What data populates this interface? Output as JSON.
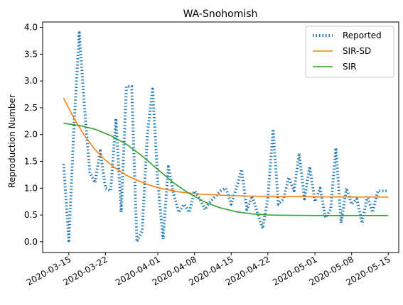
{
  "chart_data": {
    "type": "line",
    "title": "WA-Snohomish",
    "xlabel": "",
    "ylabel": "Reproduction Number",
    "xlim": [
      "2020-03-10",
      "2020-05-17"
    ],
    "ylim": [
      -0.2,
      4.1
    ],
    "x_ticks": [
      "2020-03-15",
      "2020-03-22",
      "2020-04-01",
      "2020-04-08",
      "2020-04-15",
      "2020-04-22",
      "2020-05-01",
      "2020-05-08",
      "2020-05-15"
    ],
    "y_ticks": [
      "0.0",
      "0.5",
      "1.0",
      "1.5",
      "2.0",
      "2.5",
      "3.0",
      "3.5",
      "4.0"
    ],
    "legend_position": "upper right",
    "grid": false,
    "series": [
      {
        "name": "Reported",
        "color": "#1f77b4",
        "style": "dotted",
        "x": [
          "2020-03-14",
          "2020-03-15",
          "2020-03-16",
          "2020-03-17",
          "2020-03-18",
          "2020-03-19",
          "2020-03-20",
          "2020-03-21",
          "2020-03-22",
          "2020-03-23",
          "2020-03-24",
          "2020-03-25",
          "2020-03-26",
          "2020-03-27",
          "2020-03-28",
          "2020-03-29",
          "2020-03-30",
          "2020-03-31",
          "2020-04-01",
          "2020-04-02",
          "2020-04-03",
          "2020-04-04",
          "2020-04-05",
          "2020-04-06",
          "2020-04-07",
          "2020-04-08",
          "2020-04-09",
          "2020-04-10",
          "2020-04-11",
          "2020-04-12",
          "2020-04-13",
          "2020-04-14",
          "2020-04-15",
          "2020-04-16",
          "2020-04-17",
          "2020-04-18",
          "2020-04-19",
          "2020-04-20",
          "2020-04-21",
          "2020-04-22",
          "2020-04-23",
          "2020-04-24",
          "2020-04-25",
          "2020-04-26",
          "2020-04-27",
          "2020-04-28",
          "2020-04-29",
          "2020-04-30",
          "2020-05-01",
          "2020-05-02",
          "2020-05-03",
          "2020-05-04",
          "2020-05-05",
          "2020-05-06",
          "2020-05-07",
          "2020-05-08",
          "2020-05-09",
          "2020-05-10",
          "2020-05-11",
          "2020-05-12",
          "2020-05-13",
          "2020-05-14",
          "2020-05-15"
        ],
        "values": [
          1.45,
          0.02,
          2.2,
          3.9,
          2.5,
          1.3,
          1.1,
          1.7,
          1.0,
          0.95,
          2.3,
          0.55,
          2.9,
          2.9,
          0.0,
          0.2,
          2.0,
          2.85,
          1.1,
          0.05,
          1.4,
          0.9,
          0.55,
          0.7,
          0.55,
          0.95,
          0.8,
          0.6,
          0.75,
          0.85,
          0.95,
          1.0,
          0.7,
          1.0,
          1.35,
          0.6,
          0.85,
          0.55,
          0.25,
          0.8,
          2.1,
          0.7,
          0.8,
          1.2,
          0.95,
          1.65,
          0.8,
          1.4,
          0.75,
          1.0,
          0.45,
          0.6,
          1.75,
          0.35,
          1.0,
          0.7,
          0.8,
          0.35,
          0.85,
          0.55,
          0.95,
          0.95,
          0.95
        ]
      },
      {
        "name": "SIR-SD",
        "color": "#ff7f0e",
        "style": "solid",
        "x": [
          "2020-03-14",
          "2020-03-16",
          "2020-03-18",
          "2020-03-20",
          "2020-03-22",
          "2020-03-24",
          "2020-03-26",
          "2020-03-28",
          "2020-03-30",
          "2020-04-01",
          "2020-04-03",
          "2020-04-05",
          "2020-04-07",
          "2020-04-09",
          "2020-04-11",
          "2020-04-13",
          "2020-04-15",
          "2020-04-20",
          "2020-04-25",
          "2020-05-01",
          "2020-05-08",
          "2020-05-15"
        ],
        "values": [
          2.68,
          2.3,
          1.98,
          1.72,
          1.52,
          1.37,
          1.24,
          1.15,
          1.07,
          1.01,
          0.97,
          0.93,
          0.91,
          0.89,
          0.88,
          0.87,
          0.86,
          0.85,
          0.845,
          0.84,
          0.835,
          0.835
        ]
      },
      {
        "name": "SIR",
        "color": "#2ca02c",
        "style": "solid",
        "x": [
          "2020-03-14",
          "2020-03-17",
          "2020-03-20",
          "2020-03-23",
          "2020-03-26",
          "2020-03-29",
          "2020-04-01",
          "2020-04-04",
          "2020-04-07",
          "2020-04-10",
          "2020-04-13",
          "2020-04-16",
          "2020-04-19",
          "2020-04-22",
          "2020-04-25",
          "2020-05-01",
          "2020-05-08",
          "2020-05-15"
        ],
        "values": [
          2.21,
          2.17,
          2.1,
          1.98,
          1.82,
          1.6,
          1.35,
          1.1,
          0.9,
          0.74,
          0.63,
          0.56,
          0.52,
          0.5,
          0.495,
          0.49,
          0.49,
          0.49
        ]
      }
    ]
  }
}
